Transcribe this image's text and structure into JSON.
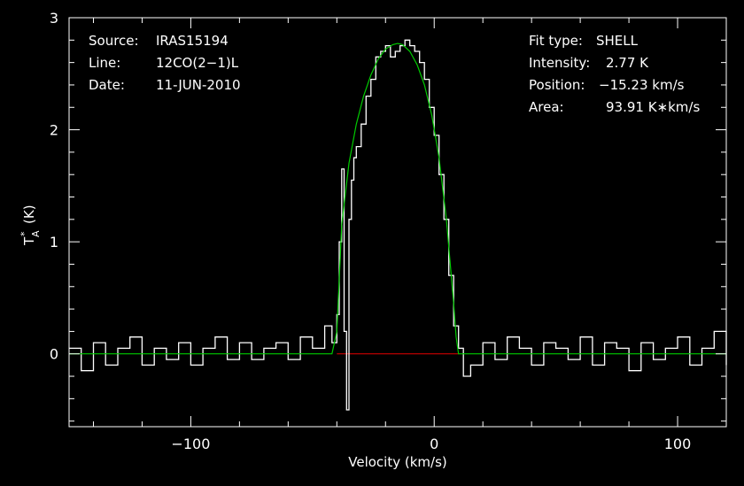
{
  "header": {
    "source_label": "Source:",
    "source_value": "IRAS15194",
    "line_label": "Line:",
    "line_value": "12CO(2−1)L",
    "date_label": "Date:",
    "date_value": "11-JUN-2010",
    "fit_type_label": "Fit type:",
    "fit_type_value": "SHELL",
    "intensity_label": "Intensity:",
    "intensity_value": "2.77 K",
    "position_label": "Position:",
    "position_value": "−15.23 km/s",
    "area_label": "Area:",
    "area_value": "93.91 K∗km/s"
  },
  "colors": {
    "background": "#000000",
    "axes": "#ffffff",
    "data": "#ffffff",
    "fit": "#00cc00",
    "baseline": "#cc0000"
  },
  "chart_data": {
    "type": "line",
    "xlabel": "Velocity (km/s)",
    "ylabel": "T",
    "ylabel_sub": "A",
    "ylabel_sup": "*",
    "ylabel_unit": "(K)",
    "xlim": [
      -150,
      120
    ],
    "ylim": [
      -0.65,
      3.0
    ],
    "x_ticks": [
      -100,
      0,
      100
    ],
    "x_tick_labels": [
      "−100",
      "0",
      "100"
    ],
    "y_ticks": [
      0,
      1,
      2,
      3
    ],
    "y_tick_labels": [
      "0",
      "1",
      "2",
      "3"
    ],
    "grid": false,
    "series": [
      {
        "role": "observed spectrum",
        "x": [
          -150,
          -145,
          -140,
          -135,
          -130,
          -125,
          -120,
          -115,
          -110,
          -105,
          -100,
          -95,
          -90,
          -85,
          -80,
          -75,
          -70,
          -65,
          -60,
          -55,
          -50,
          -45,
          -42,
          -40,
          -39,
          -38,
          -37,
          -36,
          -35,
          -34,
          -33,
          -32,
          -30,
          -28,
          -26,
          -24,
          -22,
          -20,
          -18,
          -16,
          -14,
          -12,
          -10,
          -8,
          -6,
          -4,
          -2,
          0,
          2,
          4,
          6,
          8,
          10,
          12,
          15,
          20,
          25,
          30,
          35,
          40,
          45,
          50,
          55,
          60,
          65,
          70,
          75,
          80,
          85,
          90,
          95,
          100,
          105,
          110,
          115,
          120
        ],
        "y": [
          0.05,
          -0.15,
          0.1,
          -0.1,
          0.05,
          0.15,
          -0.1,
          0.05,
          -0.05,
          0.1,
          -0.1,
          0.05,
          0.15,
          -0.05,
          0.1,
          -0.05,
          0.05,
          0.1,
          -0.05,
          0.15,
          0.05,
          0.25,
          0.1,
          0.35,
          1.0,
          1.65,
          0.2,
          -0.5,
          1.2,
          1.55,
          1.75,
          1.85,
          2.05,
          2.3,
          2.45,
          2.65,
          2.7,
          2.75,
          2.65,
          2.7,
          2.75,
          2.8,
          2.75,
          2.7,
          2.6,
          2.45,
          2.2,
          1.95,
          1.6,
          1.2,
          0.7,
          0.25,
          0.05,
          -0.2,
          -0.1,
          0.1,
          -0.05,
          0.15,
          0.05,
          -0.1,
          0.1,
          0.05,
          -0.05,
          0.15,
          -0.1,
          0.1,
          0.05,
          -0.15,
          0.1,
          -0.05,
          0.05,
          0.15,
          -0.1,
          0.05,
          0.2,
          -0.1
        ]
      },
      {
        "role": "shell fit",
        "x": [
          -150,
          -42,
          -40,
          -38,
          -35,
          -32,
          -29,
          -26,
          -23,
          -20,
          -17,
          -15,
          -13,
          -10,
          -7,
          -4,
          -1,
          2,
          5,
          8,
          9,
          10,
          120
        ],
        "y": [
          0,
          0,
          0.2,
          1.15,
          1.7,
          2.05,
          2.3,
          2.49,
          2.63,
          2.72,
          2.76,
          2.77,
          2.76,
          2.7,
          2.58,
          2.4,
          2.13,
          1.75,
          1.2,
          0.45,
          0.15,
          0,
          0
        ]
      },
      {
        "role": "baseline",
        "x": [
          -40,
          10
        ],
        "y": [
          0,
          0
        ]
      }
    ]
  }
}
